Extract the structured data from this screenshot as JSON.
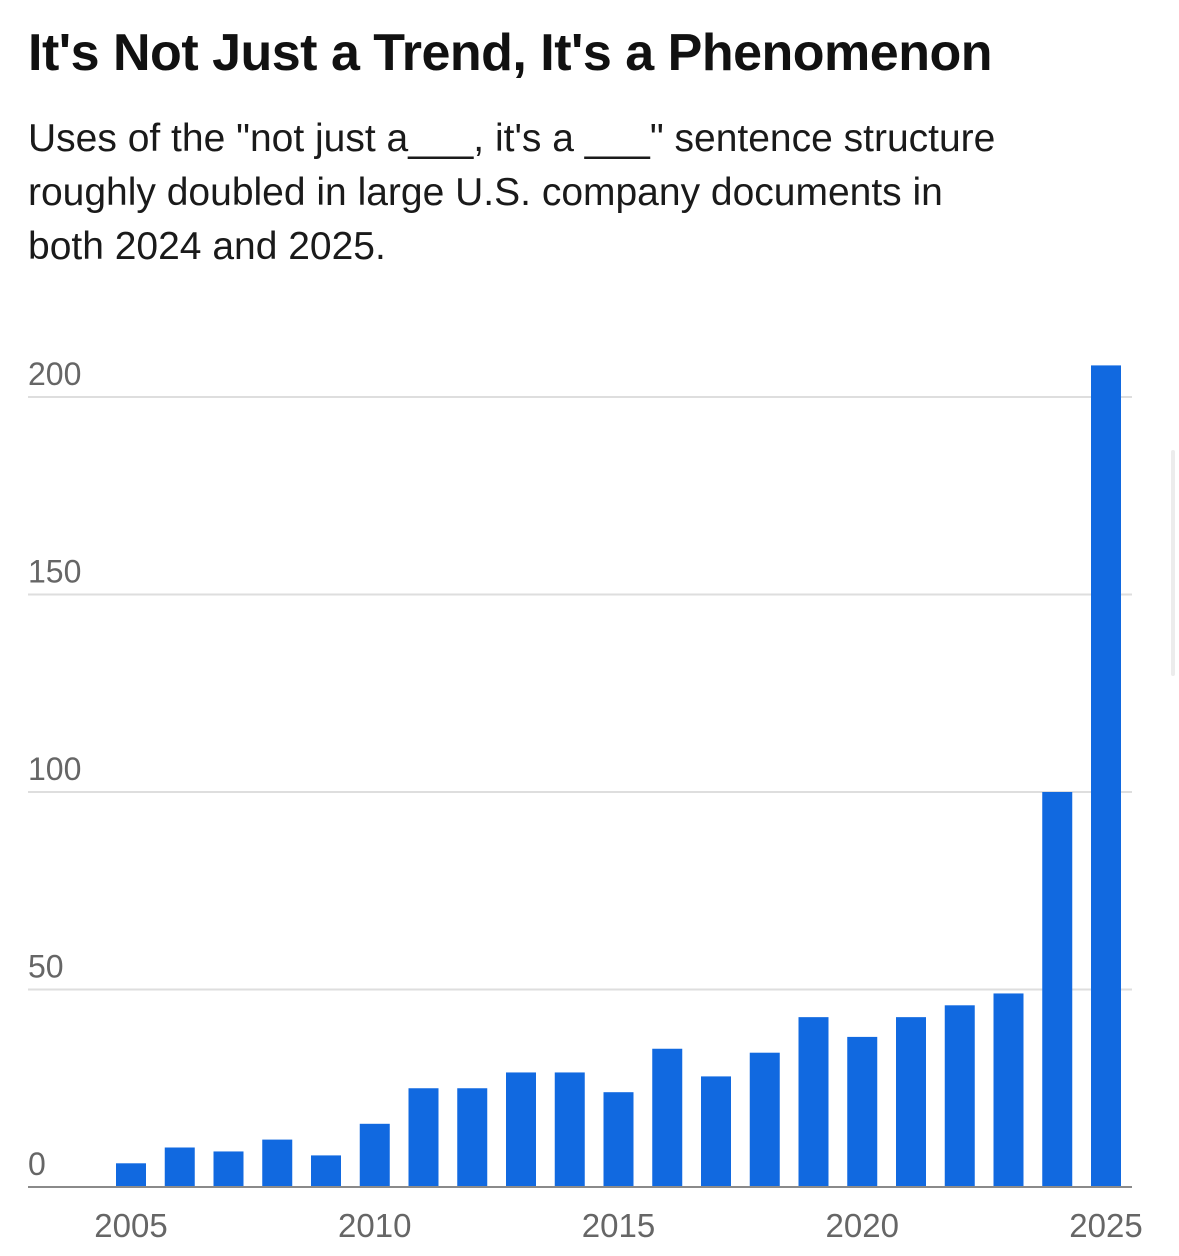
{
  "title": "It's Not Just a Trend, It's a Phenomenon",
  "subtitle": "Uses of the \"not just a___, it's a ___\" sentence structure\nroughly doubled in large U.S. company documents in\nboth 2024 and 2025.",
  "chart_data": {
    "type": "bar",
    "categories": [
      2005,
      2006,
      2007,
      2008,
      2009,
      2010,
      2011,
      2012,
      2013,
      2014,
      2015,
      2016,
      2017,
      2018,
      2019,
      2020,
      2021,
      2022,
      2023,
      2024,
      2025
    ],
    "values": [
      6,
      10,
      9,
      12,
      8,
      16,
      25,
      25,
      29,
      29,
      24,
      35,
      28,
      34,
      43,
      38,
      43,
      46,
      49,
      100,
      208
    ],
    "ylim": [
      0,
      210
    ],
    "yticks": [
      0,
      50,
      100,
      150,
      200
    ],
    "xticks": [
      2005,
      2010,
      2015,
      2020,
      2025
    ],
    "bar_color": "#1169e0",
    "grid": true,
    "xlabel": "",
    "ylabel": ""
  }
}
